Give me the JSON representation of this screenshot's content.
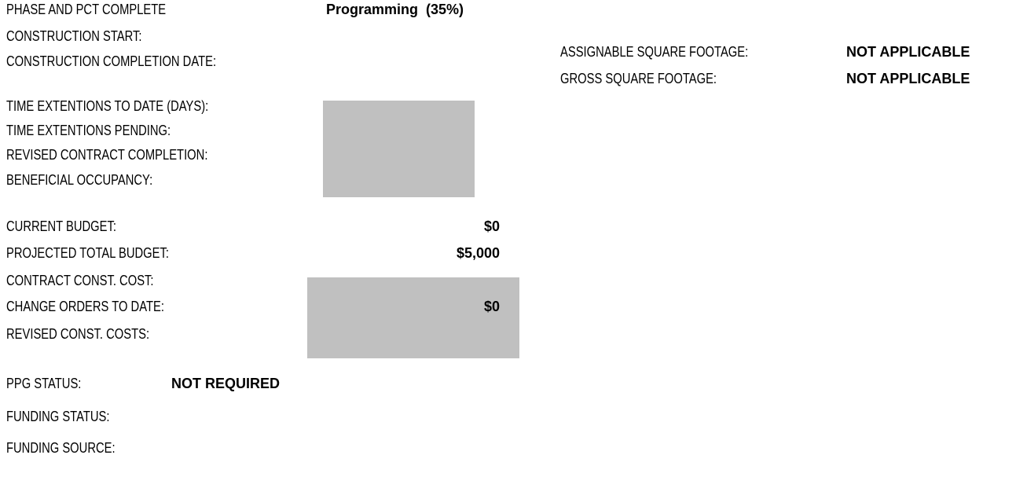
{
  "schedule": [
    {
      "label": "PHASE AND PCT COMPLETE",
      "value": "Programming  (35%)"
    },
    {
      "label": "CONSTRUCTION START:"
    },
    {
      "label": "CONSTRUCTION COMPLETION DATE:"
    }
  ],
  "footage": [
    {
      "label": "ASSIGNABLE SQUARE FOOTAGE:",
      "value": "NOT APPLICABLE"
    },
    {
      "label": "GROSS SQUARE FOOTAGE:",
      "value": "NOT APPLICABLE"
    }
  ],
  "extensions": [
    {
      "label": "TIME EXTENTIONS TO DATE (DAYS):"
    },
    {
      "label": "TIME EXTENTIONS PENDING:"
    },
    {
      "label": "REVISED CONTRACT COMPLETION:"
    },
    {
      "label": "BENEFICIAL OCCUPANCY:"
    }
  ],
  "budget": [
    {
      "label": "CURRENT BUDGET:",
      "value": "$0"
    },
    {
      "label": "PROJECTED TOTAL BUDGET:",
      "value": "$5,000"
    },
    {
      "label": "CONTRACT CONST. COST:"
    },
    {
      "label": "CHANGE ORDERS TO DATE:",
      "value": "$0"
    },
    {
      "label": "REVISED CONST. COSTS:"
    }
  ],
  "status": [
    {
      "label": "PPG STATUS:",
      "value": "NOT REQUIRED"
    },
    {
      "label": "FUNDING STATUS:"
    },
    {
      "label": "FUNDING SOURCE:"
    }
  ]
}
